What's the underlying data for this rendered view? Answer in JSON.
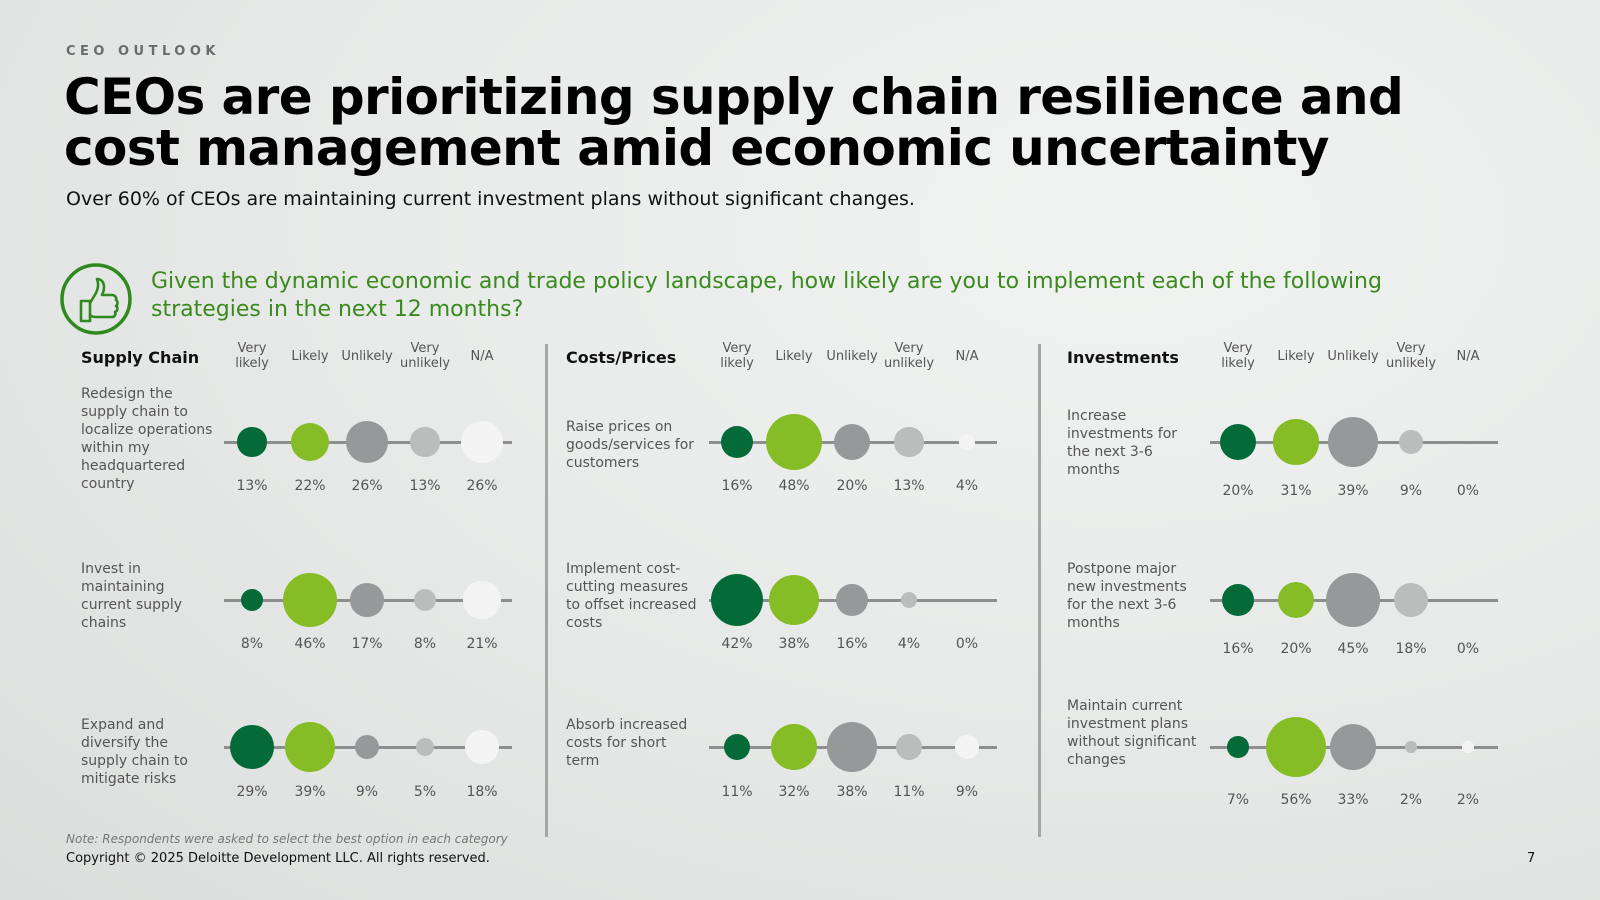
{
  "header": {
    "eyebrow": "CEO OUTLOOK",
    "title": "CEOs are prioritizing supply chain resilience and cost management amid economic uncertainty",
    "subtitle": "Over 60% of CEOs are maintaining current investment plans without significant changes."
  },
  "question": "Given the dynamic economic and trade policy landscape, how likely are you to implement each of the following strategies in the next 12 months?",
  "colors": {
    "very_likely": "#046a38",
    "likely": "#86bc25",
    "unlikely": "#979899",
    "very_unlikely": "#bbbcbc",
    "na": "#f4f4f4",
    "question_text": "#3a8a1e"
  },
  "chart_data": {
    "type": "bubble-matrix",
    "columns": [
      "Very likely",
      "Likely",
      "Unlikely",
      "Very unlikely",
      "N/A"
    ],
    "column_keys": [
      "very_likely",
      "likely",
      "unlikely",
      "very_unlikely",
      "na"
    ],
    "sections": [
      {
        "title": "Supply Chain",
        "rows": [
          {
            "label": "Redesign the supply chain to localize operations within my headquartered country",
            "values": [
              13,
              22,
              26,
              13,
              26
            ]
          },
          {
            "label": "Invest in maintaining current supply chains",
            "values": [
              8,
              46,
              17,
              8,
              21
            ]
          },
          {
            "label": "Expand and diversify the supply chain to mitigate risks",
            "values": [
              29,
              39,
              9,
              5,
              18
            ]
          }
        ]
      },
      {
        "title": "Costs/Prices",
        "rows": [
          {
            "label": "Raise prices on goods/services for customers",
            "values": [
              16,
              48,
              20,
              13,
              4
            ]
          },
          {
            "label": "Implement cost-cutting measures to offset increased costs",
            "values": [
              42,
              38,
              16,
              4,
              0
            ]
          },
          {
            "label": "Absorb increased costs for short term",
            "values": [
              11,
              32,
              38,
              11,
              9
            ]
          }
        ]
      },
      {
        "title": "Investments",
        "rows": [
          {
            "label": "Increase investments for the next 3-6 months",
            "values": [
              20,
              31,
              39,
              9,
              0
            ]
          },
          {
            "label": "Postpone major new investments for the next 3-6 months",
            "values": [
              16,
              20,
              45,
              18,
              0
            ]
          },
          {
            "label": "Maintain current investment plans without significant changes",
            "values": [
              7,
              56,
              33,
              2,
              2
            ]
          }
        ]
      }
    ]
  },
  "footer": {
    "note": "Note: Respondents were asked to select the best option in each category",
    "copyright": "Copyright © 2025 Deloitte Development LLC. All rights reserved.",
    "page_number": "7"
  }
}
